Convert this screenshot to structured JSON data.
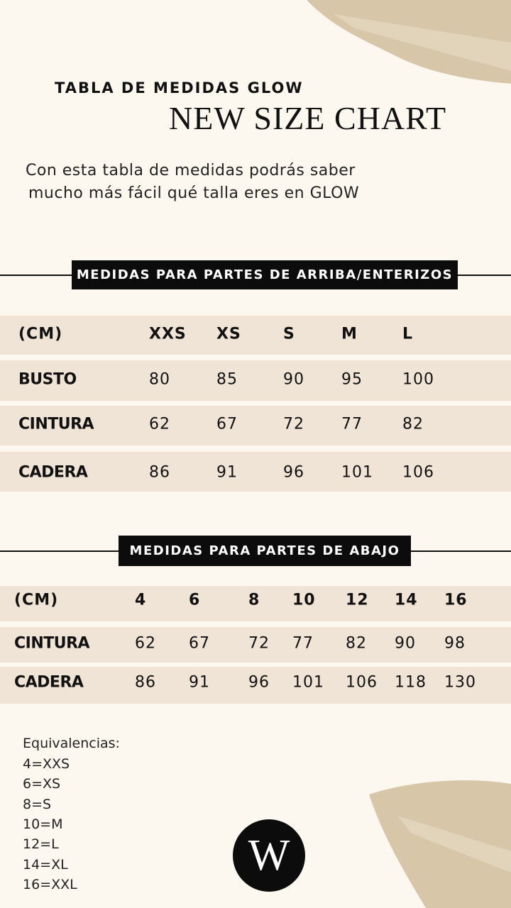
{
  "header": {
    "kicker": "TABLA DE MEDIDAS GLOW",
    "title": "NEW SIZE CHART",
    "intro": [
      "Con esta tabla de medidas podrás saber",
      "mucho más fácil qué talla eres en GLOW"
    ]
  },
  "tops": {
    "heading": "MEDIDAS PARA PARTES DE ARRIBA/ENTERIZOS",
    "header": [
      "(CM)",
      "XXS",
      "XS",
      "S",
      "M",
      "L"
    ],
    "rows": [
      [
        "BUSTO",
        80,
        85,
        90,
        95,
        100
      ],
      [
        "CINTURA",
        62,
        67,
        72,
        77,
        82
      ],
      [
        "CADERA",
        86,
        91,
        96,
        101,
        106
      ]
    ]
  },
  "bottoms": {
    "heading": "MEDIDAS PARA PARTES DE ABAJO",
    "header": [
      "(CM)",
      4,
      6,
      8,
      10,
      12,
      14,
      16
    ],
    "rows": [
      [
        "CINTURA",
        62,
        67,
        72,
        77,
        82,
        90,
        98
      ],
      [
        "CADERA",
        86,
        91,
        96,
        101,
        106,
        118,
        130
      ]
    ]
  },
  "equivalences": {
    "title": "Equivalencias:",
    "items": [
      "4=XXS",
      "6=XS",
      "8=S",
      "10=M",
      "12=L",
      "14=XL",
      "16=XXL"
    ]
  },
  "logo": "W"
}
